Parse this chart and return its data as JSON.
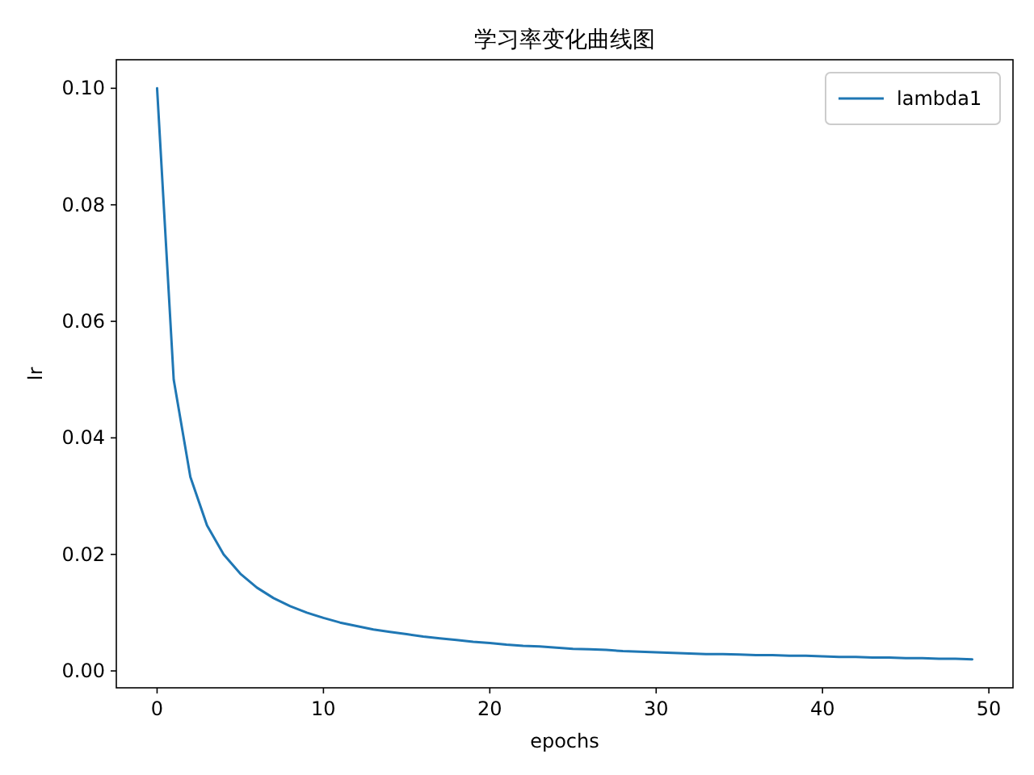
{
  "chart_data": {
    "type": "line",
    "title": "学习率变化曲线图",
    "xlabel": "epochs",
    "ylabel": "lr",
    "x": [
      0,
      1,
      2,
      3,
      4,
      5,
      6,
      7,
      8,
      9,
      10,
      11,
      12,
      13,
      14,
      15,
      16,
      17,
      18,
      19,
      20,
      21,
      22,
      23,
      24,
      25,
      26,
      27,
      28,
      29,
      30,
      31,
      32,
      33,
      34,
      35,
      36,
      37,
      38,
      39,
      40,
      41,
      42,
      43,
      44,
      45,
      46,
      47,
      48,
      49
    ],
    "series": [
      {
        "name": "lambda1",
        "color": "#1f77b4",
        "values": [
          0.1,
          0.05,
          0.0333,
          0.025,
          0.02,
          0.0167,
          0.0143,
          0.0125,
          0.0111,
          0.01,
          0.0091,
          0.0083,
          0.0077,
          0.0071,
          0.0067,
          0.0063,
          0.0059,
          0.0056,
          0.0053,
          0.005,
          0.0048,
          0.0045,
          0.0043,
          0.0042,
          0.004,
          0.0038,
          0.0037,
          0.0036,
          0.0034,
          0.0033,
          0.0032,
          0.0031,
          0.003,
          0.0029,
          0.0029,
          0.0028,
          0.0027,
          0.0027,
          0.0026,
          0.0026,
          0.0025,
          0.0024,
          0.0024,
          0.0023,
          0.0023,
          0.0022,
          0.0022,
          0.0021,
          0.0021,
          0.002
        ]
      }
    ],
    "xlim": [
      -2.45,
      51.45
    ],
    "xticks": [
      0,
      10,
      20,
      30,
      40,
      50
    ],
    "ylim": [
      -0.0029,
      0.1049
    ],
    "yticks": [
      {
        "value": 0,
        "label": "0.00"
      },
      {
        "value": 0.02,
        "label": "0.02"
      },
      {
        "value": 0.04,
        "label": "0.04"
      },
      {
        "value": 0.06,
        "label": "0.06"
      },
      {
        "value": 0.08,
        "label": "0.08"
      },
      {
        "value": 0.1,
        "label": "0.10"
      }
    ],
    "grid": false,
    "legend": "top right",
    "marker": "none",
    "line_style": "solid"
  }
}
